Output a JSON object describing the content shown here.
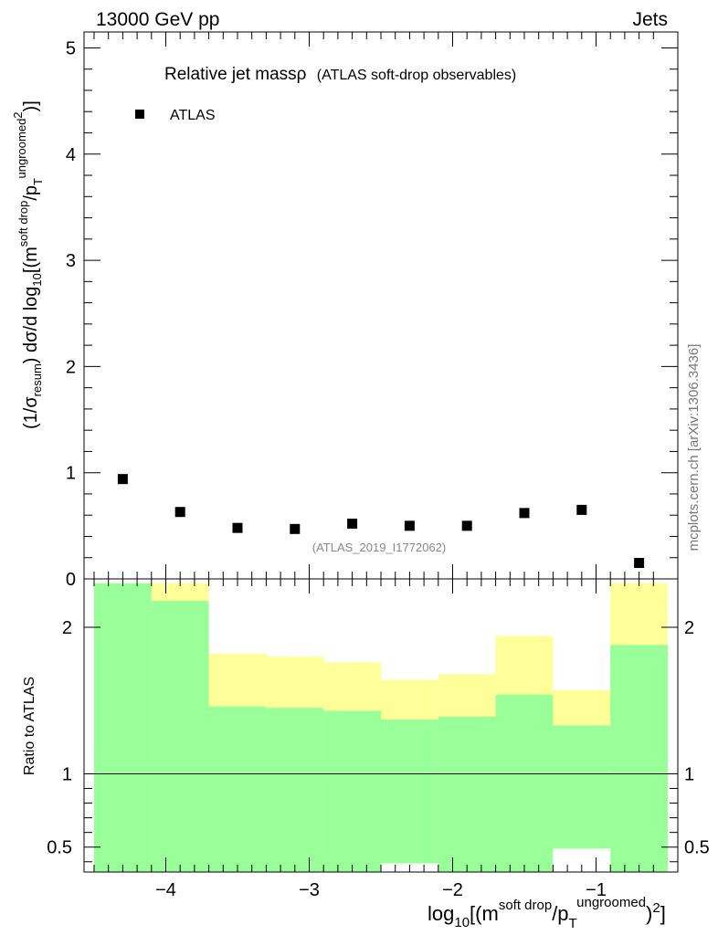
{
  "header": {
    "energy_label": "13000 GeV pp",
    "category_label": "Jets",
    "side_label": "mcplots.cern.ch [arXiv:1306.3436]"
  },
  "main_panel": {
    "title_main": "Relative jet massρ",
    "title_sub": "(ATLAS soft-drop observables)",
    "legend_label": "ATLAS",
    "analysis_id": "(ATLAS_2019_I1772062)",
    "ylabel_parts": {
      "pre": "(1/σ",
      "sub1": "resum",
      "mid": ") dσ/d log",
      "sub2": "10",
      "bracket": "[(m",
      "sup1": "soft drop",
      "slash": "/p",
      "sub3": "T",
      "sup2": "ungroomed",
      "sup3": "2",
      "close": ")]"
    }
  },
  "ratio_panel": {
    "ylabel": "Ratio to ATLAS"
  },
  "xaxis": {
    "label_parts": {
      "pre": "log",
      "sub1": "10",
      "bracket": "[(m",
      "sup1": "soft drop",
      "slash": "/p",
      "sub2": "T",
      "sup2": "ungroomed",
      "close": ")",
      "sup3": "2",
      "end": "]"
    }
  },
  "chart_data": [
    {
      "type": "scatter",
      "panel": "main",
      "series": [
        {
          "name": "ATLAS",
          "x": [
            -4.3,
            -3.9,
            -3.5,
            -3.1,
            -2.7,
            -2.3,
            -1.9,
            -1.5,
            -1.1,
            -0.7
          ],
          "y": [
            0.94,
            0.63,
            0.48,
            0.47,
            0.52,
            0.5,
            0.5,
            0.62,
            0.65,
            0.15
          ]
        }
      ],
      "xlim": [
        -4.57,
        -0.43
      ],
      "ylim": [
        0,
        5.15
      ],
      "y_ticks": [
        0,
        1,
        2,
        3,
        4,
        5
      ],
      "color": "#000000"
    },
    {
      "type": "area",
      "panel": "ratio",
      "ylabel": "Ratio to ATLAS",
      "bin_edges": [
        -4.5,
        -4.1,
        -3.7,
        -3.3,
        -2.9,
        -2.5,
        -2.1,
        -1.7,
        -1.3,
        -0.9,
        -0.5
      ],
      "bands": [
        {
          "color": "#ffff99",
          "lower": [
            0.0,
            0.0,
            0.64,
            0.65,
            0.68,
            0.75,
            0.73,
            0.55,
            0.78,
            0.0
          ],
          "upper": [
            2.3,
            2.3,
            1.82,
            1.8,
            1.76,
            1.64,
            1.68,
            1.94,
            1.57,
            2.3
          ]
        },
        {
          "color": "#99ff99",
          "lower": [
            0.0,
            0.0,
            0.0,
            0.0,
            0.0,
            0.0,
            0.0,
            0.0,
            0.0,
            0.0
          ],
          "upper": [
            2.3,
            2.18,
            1.46,
            1.45,
            1.43,
            1.37,
            1.39,
            1.54,
            1.33,
            1.88
          ]
        },
        {
          "color": "#ffffff",
          "lower": [
            0.0,
            0.0,
            0.0,
            0.0,
            0.0,
            0.0,
            0.0,
            0.0,
            0.0,
            0.0
          ],
          "upper": [
            0.0,
            0.0,
            0.0,
            0.0,
            0.0,
            0.39,
            0.0,
            0.0,
            0.49,
            0.0
          ]
        }
      ],
      "reference_line": 1,
      "ylim": [
        0.33,
        2.33
      ],
      "y_ticks": [
        0.5,
        1,
        2
      ],
      "x_ticks": [
        -4,
        -3,
        -2,
        -1
      ],
      "x_tick_labels": [
        "−4",
        "−3",
        "−2",
        "−1"
      ]
    }
  ]
}
